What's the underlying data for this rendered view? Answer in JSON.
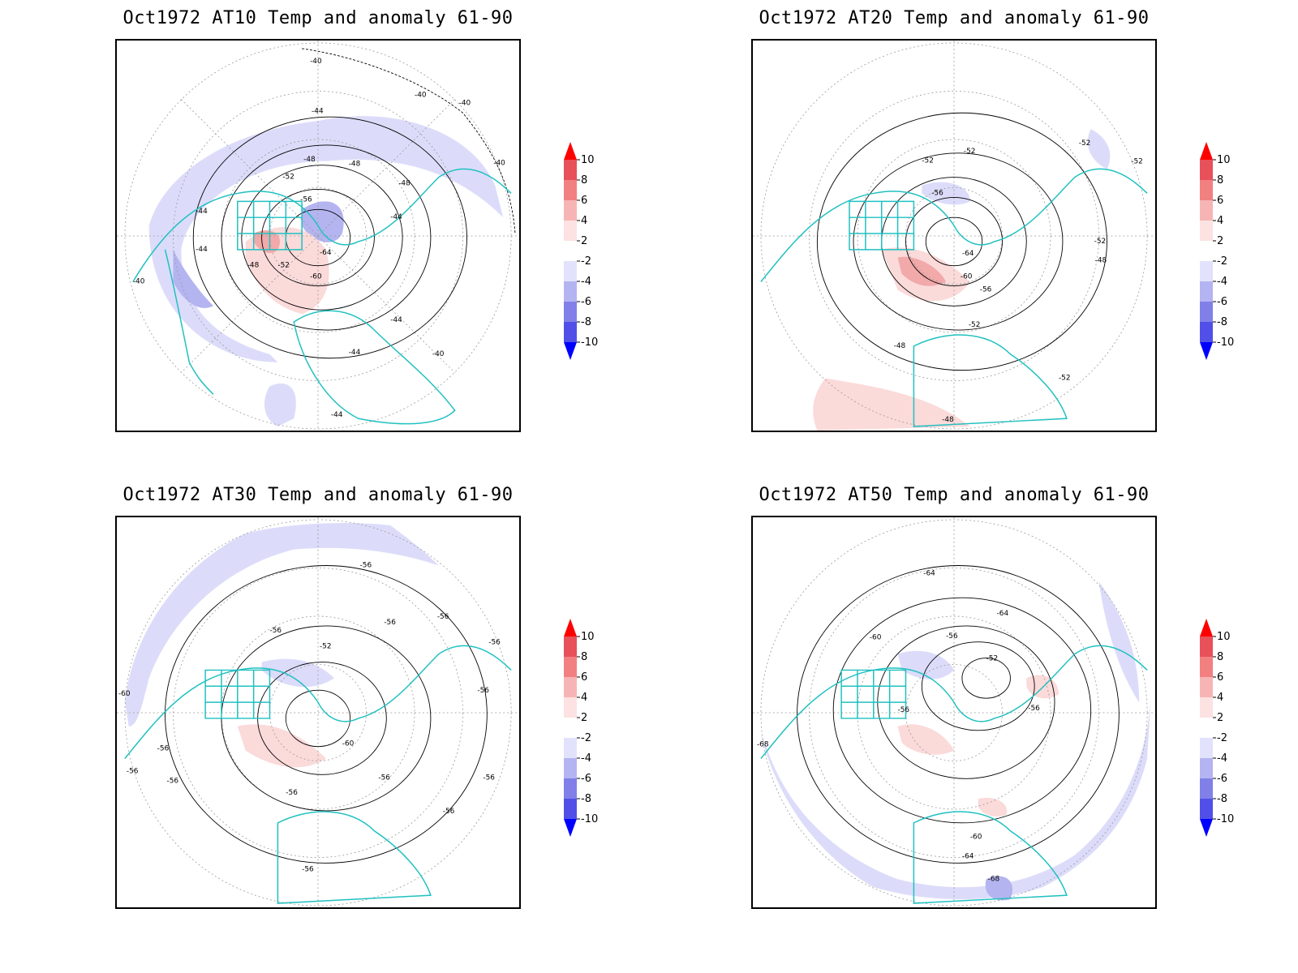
{
  "panels": [
    {
      "id": "at10",
      "title": "Oct1972 AT10 Temp and anomaly 61-90",
      "contour_labels": [
        "-40",
        "-40",
        "-40",
        "-40",
        "-44",
        "-44",
        "-44",
        "-44",
        "-44",
        "-44",
        "-48",
        "-48",
        "-48",
        "-48",
        "-52",
        "-52",
        "-56",
        "-60",
        "-64",
        "-40",
        "-40",
        "-44"
      ],
      "anomaly_shading": [
        {
          "sign": "negative",
          "level": -2
        },
        {
          "sign": "negative",
          "level": -4
        },
        {
          "sign": "positive",
          "level": 2
        },
        {
          "sign": "positive",
          "level": 4
        }
      ]
    },
    {
      "id": "at20",
      "title": "Oct1972 AT20 Temp and anomaly 61-90",
      "contour_labels": [
        "-52",
        "-52",
        "-52",
        "-52",
        "-52",
        "-56",
        "-56",
        "-60",
        "-64",
        "-48",
        "-48",
        "-52",
        "-52",
        "-48"
      ],
      "anomaly_shading": [
        {
          "sign": "negative",
          "level": -2
        },
        {
          "sign": "positive",
          "level": 2
        },
        {
          "sign": "positive",
          "level": 4
        }
      ]
    },
    {
      "id": "at30",
      "title": "Oct1972 AT30 Temp and anomaly 61-90",
      "contour_labels": [
        "-56",
        "-56",
        "-56",
        "-56",
        "-56",
        "-52",
        "-56",
        "-56",
        "-60",
        "-56",
        "-56",
        "-56",
        "-56",
        "-56",
        "-56",
        "-56",
        "-60"
      ],
      "anomaly_shading": [
        {
          "sign": "negative",
          "level": -2
        },
        {
          "sign": "positive",
          "level": 2
        }
      ]
    },
    {
      "id": "at50",
      "title": "Oct1972 AT50 Temp and anomaly 61-90",
      "contour_labels": [
        "-64",
        "-64",
        "-60",
        "-56",
        "-52",
        "-56",
        "-56",
        "-60",
        "-64",
        "-68",
        "-68"
      ],
      "anomaly_shading": [
        {
          "sign": "negative",
          "level": -2
        },
        {
          "sign": "negative",
          "level": -4
        },
        {
          "sign": "positive",
          "level": 2
        }
      ]
    }
  ],
  "colorbar": {
    "labels": [
      "10",
      "8",
      "6",
      "4",
      "2",
      "-2",
      "-4",
      "-6",
      "-8",
      "-10"
    ],
    "colors": [
      "#ff0000",
      "#e8505a",
      "#f28080",
      "#f7b4b4",
      "#fce2e2",
      "#ffffff",
      "#e2e2fc",
      "#b4b4f2",
      "#8080e8",
      "#5050e8",
      "#0000ff"
    ]
  },
  "colors": {
    "coastline": "#20c0c0",
    "contour": "#000000",
    "neg_light": "#dcdcfa",
    "neg_mid": "#b4b4f0",
    "pos_light": "#fbdada",
    "pos_mid": "#f2a9a9"
  }
}
